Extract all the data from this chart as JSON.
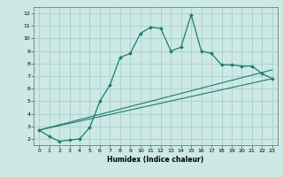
{
  "xlabel": "Humidex (Indice chaleur)",
  "xlim": [
    -0.5,
    23.5
  ],
  "ylim": [
    1.5,
    12.5
  ],
  "yticks": [
    2,
    3,
    4,
    5,
    6,
    7,
    8,
    9,
    10,
    11,
    12
  ],
  "xticks": [
    0,
    1,
    2,
    3,
    4,
    5,
    6,
    7,
    8,
    9,
    10,
    11,
    12,
    13,
    14,
    15,
    16,
    17,
    18,
    19,
    20,
    21,
    22,
    23
  ],
  "background_color": "#cce9e5",
  "grid_color": "#aacfcc",
  "line_color": "#1e7b6e",
  "line1_x": [
    0,
    1,
    2,
    3,
    4,
    5,
    6,
    7,
    8,
    9,
    10,
    11,
    12,
    13,
    14,
    15,
    16,
    17,
    18,
    19,
    20,
    21,
    22,
    23
  ],
  "line1_y": [
    2.7,
    2.2,
    1.8,
    1.9,
    2.0,
    2.9,
    5.0,
    6.3,
    8.5,
    8.8,
    10.4,
    10.9,
    10.8,
    9.0,
    9.3,
    11.9,
    9.0,
    8.8,
    7.9,
    7.9,
    7.8,
    7.8,
    7.2,
    6.8
  ],
  "line2_x": [
    0,
    23
  ],
  "line2_y": [
    2.7,
    7.5
  ],
  "line3_x": [
    0,
    23
  ],
  "line3_y": [
    2.7,
    6.8
  ]
}
